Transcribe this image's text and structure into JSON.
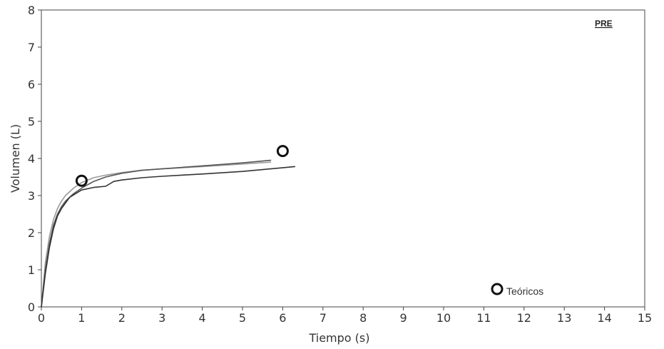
{
  "chart_data": {
    "type": "line",
    "panel_label": "PRE",
    "xlabel": "Tiempo (s)",
    "ylabel": "Volumen (L)",
    "xlim": [
      0,
      15
    ],
    "ylim": [
      0,
      8
    ],
    "x_ticks": [
      "0",
      "1",
      "2",
      "3",
      "4",
      "5",
      "6",
      "7",
      "8",
      "9",
      "10",
      "11",
      "12",
      "13",
      "14",
      "15"
    ],
    "y_ticks": [
      "0",
      "1",
      "2",
      "3",
      "4",
      "5",
      "6",
      "7",
      "8"
    ],
    "grid": false,
    "legend": {
      "position": "bottom-right",
      "entries": [
        {
          "label": "Teóricos",
          "marker": "circle"
        }
      ]
    },
    "series": [
      {
        "color": "#9a9a9a",
        "x": [
          0,
          0.1,
          0.2,
          0.3,
          0.4,
          0.5,
          0.6,
          0.8,
          1.0,
          1.3,
          1.6,
          2.0,
          2.5,
          3.0,
          4.0,
          5.0,
          5.7
        ],
        "y": [
          0,
          1.2,
          1.9,
          2.35,
          2.65,
          2.85,
          3.0,
          3.2,
          3.35,
          3.48,
          3.55,
          3.62,
          3.68,
          3.72,
          3.78,
          3.85,
          3.9
        ]
      },
      {
        "color": "#555555",
        "x": [
          0,
          0.1,
          0.2,
          0.3,
          0.4,
          0.5,
          0.6,
          0.8,
          1.0,
          1.3,
          1.6,
          2.0,
          2.5,
          3.0,
          4.0,
          5.0,
          5.7
        ],
        "y": [
          0,
          1.0,
          1.7,
          2.2,
          2.5,
          2.7,
          2.85,
          3.05,
          3.2,
          3.38,
          3.5,
          3.6,
          3.68,
          3.72,
          3.8,
          3.88,
          3.95
        ]
      },
      {
        "color": "#333333",
        "x": [
          0,
          0.1,
          0.2,
          0.3,
          0.4,
          0.5,
          0.7,
          1.0,
          1.3,
          1.6,
          1.8,
          2.0,
          2.5,
          3.0,
          4.0,
          5.0,
          6.3
        ],
        "y": [
          0,
          0.9,
          1.6,
          2.1,
          2.45,
          2.65,
          2.95,
          3.15,
          3.22,
          3.25,
          3.38,
          3.42,
          3.48,
          3.52,
          3.58,
          3.65,
          3.78
        ]
      }
    ],
    "teoricos": {
      "label": "Teóricos",
      "x": [
        1.0,
        6.0
      ],
      "y": [
        3.4,
        4.2
      ]
    }
  }
}
